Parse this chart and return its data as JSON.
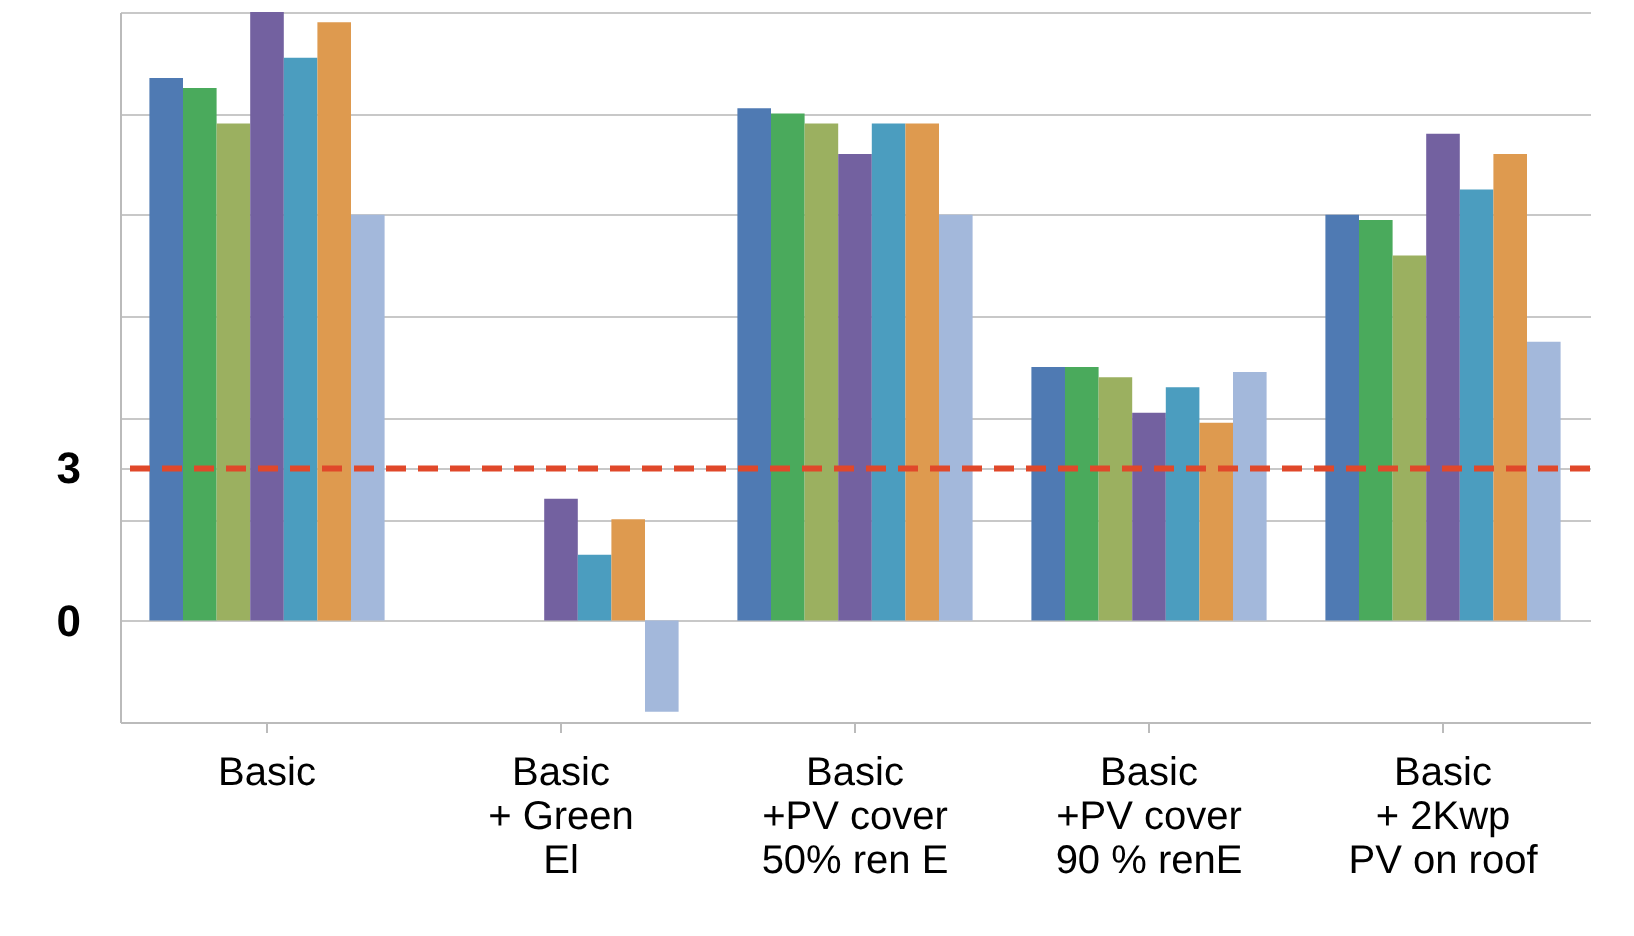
{
  "chart_data": {
    "type": "bar",
    "categories": [
      "Basic",
      "Basic\n+ Green\nEl",
      "Basic\n+PV cover\n50% ren E",
      "Basic\n+PV cover\n90 % renE",
      "Basic\n+ 2Kwp\nPV on roof"
    ],
    "series": [
      {
        "color": "#4f7ab3",
        "values": [
          10.7,
          null,
          10.1,
          5.0,
          8.0
        ]
      },
      {
        "color": "#4aaa5c",
        "values": [
          10.5,
          null,
          10.0,
          5.0,
          7.9
        ]
      },
      {
        "color": "#9bb060",
        "values": [
          9.8,
          null,
          9.8,
          4.8,
          7.2
        ]
      },
      {
        "color": "#7361a0",
        "values": [
          12.0,
          2.4,
          9.2,
          4.1,
          9.6
        ]
      },
      {
        "color": "#4b9dbf",
        "values": [
          11.1,
          1.3,
          9.8,
          4.6,
          8.5
        ]
      },
      {
        "color": "#de9a4f",
        "values": [
          11.8,
          2.0,
          9.8,
          3.9,
          9.2
        ]
      },
      {
        "color": "#a3b8db",
        "values": [
          8.0,
          -1.8,
          8.0,
          4.9,
          5.5
        ]
      }
    ],
    "ylim": [
      -2,
      12
    ],
    "yticks": [
      {
        "value": -2,
        "label": null
      },
      0,
      {
        "value": 2,
        "label": null
      },
      3,
      {
        "value": 4,
        "label": null
      },
      {
        "value": 6,
        "label": null
      },
      {
        "value": 8,
        "label": null
      },
      {
        "value": 10,
        "label": null
      },
      {
        "value": 12,
        "label": null
      }
    ],
    "grid": "y",
    "ref_lines": [
      {
        "axis": "y",
        "value": 3,
        "color": "#e0482a",
        "line_style": "dashed"
      }
    ]
  }
}
